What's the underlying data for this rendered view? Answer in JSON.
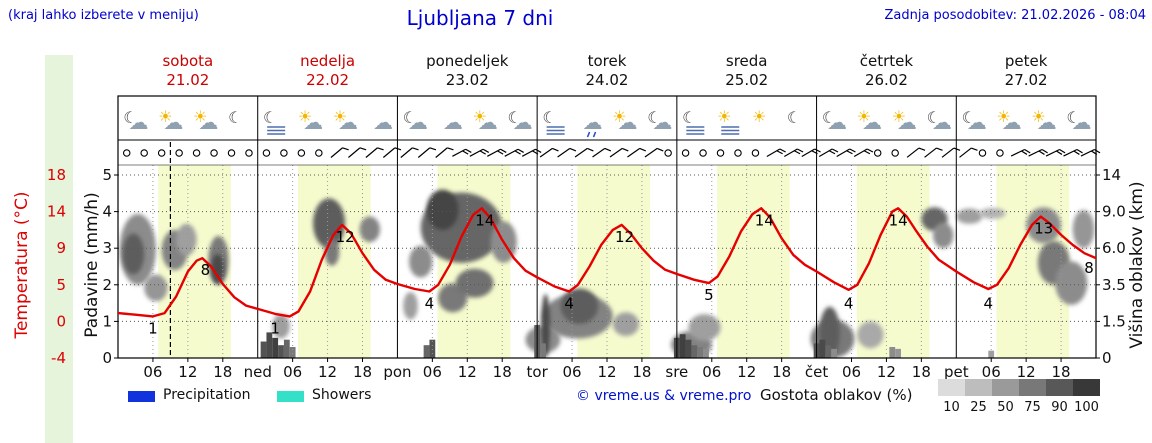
{
  "header": {
    "hint": "(kraj lahko izberete v meniju)",
    "title": "Ljubljana 7 dni",
    "updated": "Zadnja posodobitev: 21.02.2026 - 08:04"
  },
  "axes": {
    "left_temp": {
      "title": "Temperatura (°C)",
      "ticks": [
        "18",
        "14",
        "9",
        "5",
        "0",
        "-4"
      ],
      "color": "#dd0000"
    },
    "left_precip": {
      "title": "Padavine (mm/h)",
      "ticks": [
        "5",
        "4",
        "3",
        "2",
        "1",
        "0"
      ]
    },
    "right_cloud": {
      "title": "Višina oblakov (km)",
      "ticks": [
        "14",
        "9.0",
        "6.0",
        "3.5",
        "1.5",
        "0"
      ]
    }
  },
  "days": [
    {
      "name": "sobota",
      "date": "21.02",
      "color": "#cc0000"
    },
    {
      "name": "nedelja",
      "date": "22.02",
      "color": "#cc0000"
    },
    {
      "name": "ponedeljek",
      "date": "23.02",
      "color": "#111111"
    },
    {
      "name": "torek",
      "date": "24.02",
      "color": "#111111"
    },
    {
      "name": "sreda",
      "date": "25.02",
      "color": "#111111"
    },
    {
      "name": "četrtek",
      "date": "26.02",
      "color": "#111111"
    },
    {
      "name": "petek",
      "date": "27.02",
      "color": "#111111"
    }
  ],
  "day_abbrs": [
    "ned",
    "pon",
    "tor",
    "sre",
    "čet",
    "pet"
  ],
  "hour_labels": [
    "06",
    "12",
    "18"
  ],
  "legend": {
    "precipitation": {
      "label": "Precipitation",
      "color": "#1133dd"
    },
    "showers": {
      "label": "Showers",
      "color": "#35e0c8"
    },
    "credit": "© vreme.us & vreme.pro",
    "cloud_density": {
      "label": "Gostota oblakov (%)",
      "steps": [
        "10",
        "25",
        "50",
        "75",
        "90",
        "100"
      ],
      "colors": [
        "#dcdcdc",
        "#bdbdbd",
        "#9a9a9a",
        "#787878",
        "#585858",
        "#383838"
      ]
    }
  },
  "chart_data": {
    "type": "line",
    "title": "Ljubljana 7 dni",
    "x_hours_total": 168,
    "now_hour": 9,
    "daylight": {
      "start": 6.9,
      "end": 19.4
    },
    "colors": {
      "daylight_band": "#f6fbce",
      "temp_line": "#e60000",
      "grid": "#555555",
      "day_line": "#000000"
    },
    "temp_axis": {
      "min": -4,
      "max": 18
    },
    "precip_axis": {
      "min": 0,
      "max": 5
    },
    "cloud_axis_km": [
      0,
      1.5,
      3.5,
      6,
      9,
      14
    ],
    "temperature": {
      "series": [
        [
          0,
          1.4
        ],
        [
          3,
          1.2
        ],
        [
          6,
          1.0
        ],
        [
          8,
          1.4
        ],
        [
          10,
          3.4
        ],
        [
          12,
          6.4
        ],
        [
          13.5,
          7.7
        ],
        [
          14.5,
          8.0
        ],
        [
          16,
          7.0
        ],
        [
          18,
          4.9
        ],
        [
          20,
          3.3
        ],
        [
          22,
          2.3
        ],
        [
          24,
          1.9
        ],
        [
          27,
          1.3
        ],
        [
          29.5,
          1.0
        ],
        [
          31,
          1.6
        ],
        [
          33,
          4.0
        ],
        [
          35,
          7.8
        ],
        [
          37,
          10.8
        ],
        [
          38.5,
          12.0
        ],
        [
          40,
          11.0
        ],
        [
          42,
          8.6
        ],
        [
          44,
          6.6
        ],
        [
          46,
          5.4
        ],
        [
          48,
          4.9
        ],
        [
          51,
          4.3
        ],
        [
          53.5,
          4.0
        ],
        [
          55,
          4.8
        ],
        [
          57,
          7.2
        ],
        [
          59,
          10.6
        ],
        [
          61,
          13.2
        ],
        [
          62.5,
          14.0
        ],
        [
          64,
          12.8
        ],
        [
          66,
          10.2
        ],
        [
          68,
          8.0
        ],
        [
          70,
          6.5
        ],
        [
          72,
          5.7
        ],
        [
          75,
          4.6
        ],
        [
          77.5,
          4.0
        ],
        [
          79,
          4.8
        ],
        [
          81,
          7.0
        ],
        [
          83,
          9.6
        ],
        [
          85,
          11.4
        ],
        [
          86.5,
          12.0
        ],
        [
          88,
          11.0
        ],
        [
          90,
          9.2
        ],
        [
          92,
          7.7
        ],
        [
          94,
          6.6
        ],
        [
          96,
          6.1
        ],
        [
          99,
          5.4
        ],
        [
          101.5,
          5.0
        ],
        [
          103,
          5.8
        ],
        [
          105,
          8.2
        ],
        [
          107,
          11.2
        ],
        [
          109,
          13.3
        ],
        [
          110.5,
          14.0
        ],
        [
          112,
          12.9
        ],
        [
          114,
          10.4
        ],
        [
          116,
          8.4
        ],
        [
          118,
          7.2
        ],
        [
          120,
          6.4
        ],
        [
          123,
          5.1
        ],
        [
          125.5,
          4.2
        ],
        [
          127,
          4.8
        ],
        [
          129,
          7.4
        ],
        [
          131,
          10.8
        ],
        [
          133,
          13.6
        ],
        [
          134,
          14.0
        ],
        [
          135.5,
          13.0
        ],
        [
          137,
          11.4
        ],
        [
          139,
          9.4
        ],
        [
          141,
          7.8
        ],
        [
          144,
          6.4
        ],
        [
          147,
          5.1
        ],
        [
          149.5,
          4.3
        ],
        [
          151,
          4.8
        ],
        [
          153,
          6.8
        ],
        [
          155,
          9.6
        ],
        [
          157,
          12.0
        ],
        [
          158.5,
          13.0
        ],
        [
          160,
          12.2
        ],
        [
          162,
          10.8
        ],
        [
          164,
          9.6
        ],
        [
          166,
          8.6
        ],
        [
          168,
          8.0
        ]
      ]
    },
    "temp_labels": {
      "max": [
        {
          "t": 14.5,
          "v": "8"
        },
        {
          "t": 38.5,
          "v": "12"
        },
        {
          "t": 62.5,
          "v": "14"
        },
        {
          "t": 86.5,
          "v": "12"
        },
        {
          "t": 110.5,
          "v": "14"
        },
        {
          "t": 133.5,
          "v": "14"
        },
        {
          "t": 158.5,
          "v": "13"
        }
      ],
      "min": [
        {
          "t": 6,
          "v": "1"
        },
        {
          "t": 27,
          "v": "1"
        },
        {
          "t": 53.5,
          "v": "4"
        },
        {
          "t": 77.5,
          "v": "4"
        },
        {
          "t": 101.5,
          "v": "5"
        },
        {
          "t": 125.5,
          "v": "4"
        },
        {
          "t": 149.5,
          "v": "4"
        }
      ],
      "end": {
        "t": 166.8,
        "v": "8"
      }
    },
    "clouds": [
      [
        0.3,
        6.5,
        3.5,
        8.8,
        0.5
      ],
      [
        0.8,
        4.5,
        4.2,
        7.2,
        0.75
      ],
      [
        4.5,
        8.5,
        2.6,
        4.2,
        0.45
      ],
      [
        7.5,
        12,
        4.5,
        7.5,
        0.55
      ],
      [
        10,
        13.5,
        5.5,
        8,
        0.4
      ],
      [
        15.5,
        19,
        3.5,
        7,
        0.6
      ],
      [
        16,
        18.2,
        3.6,
        5.6,
        0.85
      ],
      [
        26.5,
        29.5,
        0.8,
        1.9,
        0.4
      ],
      [
        33.5,
        39,
        6,
        10.8,
        0.75
      ],
      [
        35.5,
        38,
        4.8,
        6.8,
        0.6
      ],
      [
        41.5,
        45,
        6.5,
        8.6,
        0.55
      ],
      [
        49,
        51.5,
        1.6,
        3.1,
        0.4
      ],
      [
        50,
        54,
        4,
        6.2,
        0.5
      ],
      [
        52,
        66,
        5,
        11.6,
        0.7
      ],
      [
        53,
        58.5,
        7.5,
        12,
        0.88
      ],
      [
        55,
        60,
        2,
        3.6,
        0.6
      ],
      [
        58,
        64.5,
        2.8,
        4.6,
        0.65
      ],
      [
        64,
        68.5,
        5,
        8.2,
        0.5
      ],
      [
        70,
        76,
        0.2,
        1.3,
        0.5
      ],
      [
        73,
        85,
        0.8,
        3,
        0.55
      ],
      [
        76,
        82.5,
        1.4,
        3.3,
        0.75
      ],
      [
        72.7,
        74.2,
        0,
        3,
        0.85
      ],
      [
        85,
        89.5,
        0.9,
        2,
        0.4
      ],
      [
        95,
        102,
        0,
        1.1,
        0.55
      ],
      [
        98,
        103.5,
        0.7,
        1.9,
        0.4
      ],
      [
        119,
        126.5,
        0,
        1.6,
        0.6
      ],
      [
        120.5,
        124,
        0,
        2.3,
        0.75
      ],
      [
        127,
        131.5,
        0.4,
        1.5,
        0.35
      ],
      [
        138,
        142.5,
        7.4,
        9.6,
        0.7
      ],
      [
        140,
        143.5,
        6,
        8.1,
        0.5
      ],
      [
        144,
        148.5,
        8,
        9.4,
        0.4
      ],
      [
        148,
        152.5,
        8.4,
        9.5,
        0.3
      ],
      [
        156,
        162,
        6.4,
        9.6,
        0.5
      ],
      [
        158,
        163.5,
        3.5,
        6.6,
        0.6
      ],
      [
        161,
        166.5,
        2.4,
        5.1,
        0.5
      ],
      [
        164,
        167.7,
        6,
        9.2,
        0.45
      ]
    ],
    "precip_bars": [
      [
        25,
        0.45,
        0.8
      ],
      [
        26,
        0.7,
        0.85
      ],
      [
        27,
        0.55,
        0.9
      ],
      [
        28,
        0.35,
        0.8
      ],
      [
        29,
        0.5,
        0.7
      ],
      [
        30,
        0.3,
        0.6
      ],
      [
        53,
        0.35,
        0.7
      ],
      [
        54,
        0.5,
        0.8
      ],
      [
        72,
        0.9,
        0.75
      ],
      [
        73,
        0.4,
        0.6
      ],
      [
        96,
        0.55,
        0.85
      ],
      [
        97,
        0.65,
        0.9
      ],
      [
        98,
        0.5,
        0.85
      ],
      [
        99,
        0.35,
        0.7
      ],
      [
        100,
        0.3,
        0.6
      ],
      [
        101,
        0.25,
        0.5
      ],
      [
        120,
        0.4,
        0.8
      ],
      [
        121,
        0.5,
        0.85
      ],
      [
        122,
        0.35,
        0.7
      ],
      [
        123,
        0.25,
        0.5
      ],
      [
        133,
        0.3,
        0.5
      ],
      [
        134,
        0.25,
        0.45
      ],
      [
        150,
        0.2,
        0.4
      ]
    ],
    "wind": [
      {
        "from": 0,
        "to": 37,
        "type": "calm"
      },
      {
        "from": 37,
        "to": 56,
        "type": "barb",
        "dir": 50,
        "ticks": 1
      },
      {
        "from": 56,
        "to": 73,
        "type": "barb",
        "dir": 62,
        "ticks": 2
      },
      {
        "from": 73,
        "to": 92,
        "type": "barb",
        "dir": 55,
        "ticks": 1
      },
      {
        "from": 92,
        "to": 111,
        "type": "calm"
      },
      {
        "from": 111,
        "to": 128,
        "type": "barb",
        "dir": 60,
        "ticks": 2
      },
      {
        "from": 128,
        "to": 134,
        "type": "calm"
      },
      {
        "from": 134,
        "to": 148,
        "type": "barb",
        "dir": 52,
        "ticks": 1
      },
      {
        "from": 148,
        "to": 152,
        "type": "calm"
      },
      {
        "from": 152,
        "to": 168,
        "type": "barb",
        "dir": 64,
        "ticks": 2
      }
    ],
    "icons": [
      "cloud-moon",
      "sun-cloud",
      "sun-cloud",
      "moon",
      "fog-moon",
      "sun-cloud",
      "sun-cloud",
      "cloud",
      "cloud-moon",
      "cloud",
      "sun-cloud",
      "cloud-moon",
      "fog-moon",
      "cloud-rain",
      "sun-cloud",
      "cloud-moon",
      "fog-moon",
      "sun-fog",
      "sun",
      "moon",
      "cloud-moon",
      "sun-cloud",
      "sun-cloud",
      "cloud-moon",
      "cloud-moon",
      "sun-cloud",
      "sun-cloud",
      "cloud-moon"
    ]
  }
}
